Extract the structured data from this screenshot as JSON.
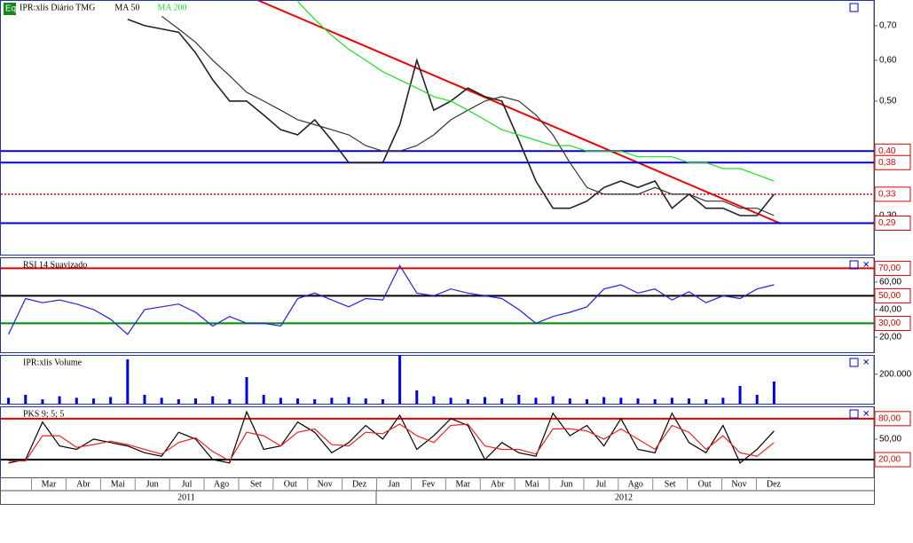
{
  "chart_data": [
    {
      "type": "line",
      "title": "IPR:xlis Diário TMG",
      "yscale": "log",
      "ylim": [
        0.252,
        0.785
      ],
      "yticks": [
        {
          "value": 0.7,
          "label": "0,70"
        },
        {
          "value": 0.6,
          "label": "0,60"
        },
        {
          "value": 0.5,
          "label": "0,50"
        },
        {
          "value": 0.3,
          "label": "0,30"
        }
      ],
      "levels": [
        {
          "value": 0.4,
          "label": "0,40",
          "color": "#0000cc"
        },
        {
          "value": 0.38,
          "label": "0,38",
          "color": "#0000cc"
        },
        {
          "value": 0.33,
          "label": "0,33",
          "color": "#dd0000"
        },
        {
          "value": 0.29,
          "label": "0,29",
          "color": "#0000cc"
        }
      ],
      "series": [
        {
          "color": "#222222",
          "values": [
            null,
            null,
            null,
            null,
            null,
            null,
            null,
            0.72,
            0.7,
            0.69,
            0.68,
            0.62,
            0.55,
            0.5,
            0.5,
            0.47,
            0.44,
            0.43,
            0.46,
            0.42,
            0.38,
            0.38,
            0.38,
            0.45,
            0.6,
            0.48,
            0.5,
            0.53,
            0.51,
            0.5,
            0.42,
            0.35,
            0.31,
            0.31,
            0.32,
            0.34,
            0.35,
            0.34,
            0.35,
            0.31,
            0.33,
            0.31,
            0.31,
            0.3,
            0.3,
            0.33
          ]
        },
        {
          "name": "MA 50",
          "color": "#333333",
          "values": [
            null,
            null,
            null,
            null,
            null,
            null,
            null,
            null,
            null,
            0.73,
            0.69,
            0.65,
            0.6,
            0.56,
            0.52,
            0.5,
            0.48,
            0.46,
            0.45,
            0.44,
            0.43,
            0.41,
            0.4,
            0.4,
            0.41,
            0.43,
            0.46,
            0.48,
            0.5,
            0.51,
            0.5,
            0.47,
            0.43,
            0.38,
            0.34,
            0.33,
            0.33,
            0.33,
            0.34,
            0.33,
            0.33,
            0.32,
            0.32,
            0.31,
            0.31,
            0.3
          ]
        },
        {
          "name": "MA 200",
          "color": "#22dd22",
          "values": [
            null,
            null,
            null,
            null,
            null,
            null,
            null,
            null,
            null,
            null,
            null,
            null,
            null,
            null,
            null,
            null,
            null,
            0.78,
            0.72,
            0.67,
            0.63,
            0.6,
            0.57,
            0.55,
            0.53,
            0.51,
            0.5,
            0.48,
            0.46,
            0.44,
            0.43,
            0.42,
            0.41,
            0.41,
            0.4,
            0.4,
            0.4,
            0.39,
            0.39,
            0.39,
            0.38,
            0.38,
            0.37,
            0.37,
            0.36,
            0.35
          ]
        }
      ]
    },
    {
      "type": "line",
      "title": "RSI 14 Suavizado",
      "ylim": [
        9,
        78
      ],
      "yticks": [
        {
          "value": 60,
          "label": "60,00"
        },
        {
          "value": 40,
          "label": "40,00"
        },
        {
          "value": 20,
          "label": "20,00"
        }
      ],
      "levels": [
        {
          "value": 70,
          "label": "70,00",
          "color": "#dd0000"
        },
        {
          "value": 50,
          "label": "50,00",
          "color": "#000000"
        },
        {
          "value": 30,
          "label": "30,00",
          "color": "#008800"
        }
      ],
      "series": [
        {
          "color": "#2222dd",
          "values": [
            22,
            48,
            45,
            47,
            44,
            40,
            33,
            22,
            40,
            42,
            44,
            38,
            28,
            35,
            30,
            30,
            28,
            48,
            52,
            47,
            42,
            48,
            47,
            72,
            52,
            50,
            55,
            52,
            50,
            48,
            40,
            30,
            35,
            38,
            42,
            55,
            58,
            52,
            55,
            47,
            53,
            45,
            50,
            48,
            55,
            58
          ]
        }
      ]
    },
    {
      "type": "bar",
      "title": "IPR:xlis Volume",
      "ylim": [
        0,
        330000
      ],
      "yticks": [
        {
          "value": 200000,
          "label": "200.000"
        }
      ],
      "levels": [],
      "series": [
        {
          "color": "#0000ee",
          "values": [
            40000,
            60000,
            30000,
            50000,
            40000,
            35000,
            45000,
            300000,
            60000,
            40000,
            30000,
            35000,
            50000,
            30000,
            180000,
            60000,
            40000,
            35000,
            30000,
            40000,
            45000,
            35000,
            30000,
            330000,
            90000,
            50000,
            40000,
            30000,
            45000,
            35000,
            60000,
            40000,
            50000,
            35000,
            30000,
            45000,
            40000,
            35000,
            30000,
            40000,
            35000,
            30000,
            40000,
            120000,
            60000,
            150000
          ]
        }
      ]
    },
    {
      "type": "line",
      "title": "PKS 9; 5; 5",
      "ylim": [
        -6,
        98
      ],
      "yticks": [
        {
          "value": 50,
          "label": "50,00"
        }
      ],
      "levels": [
        {
          "value": 80,
          "label": "80,00",
          "color": "#dd0000"
        },
        {
          "value": 20,
          "label": "20,00",
          "color": "#000000"
        }
      ],
      "series": [
        {
          "color": "#000000",
          "values": [
            15,
            20,
            75,
            40,
            35,
            50,
            45,
            40,
            30,
            25,
            60,
            50,
            20,
            15,
            90,
            35,
            40,
            75,
            60,
            30,
            45,
            70,
            50,
            85,
            35,
            55,
            80,
            70,
            20,
            45,
            30,
            25,
            88,
            55,
            70,
            40,
            80,
            35,
            30,
            88,
            45,
            30,
            70,
            15,
            35,
            62
          ]
        },
        {
          "color": "#ee2222",
          "values": [
            18,
            18,
            55,
            55,
            38,
            42,
            47,
            42,
            35,
            28,
            45,
            52,
            32,
            18,
            60,
            55,
            40,
            60,
            65,
            42,
            40,
            60,
            58,
            72,
            55,
            45,
            70,
            72,
            40,
            35,
            35,
            28,
            65,
            65,
            62,
            50,
            65,
            50,
            35,
            70,
            60,
            35,
            55,
            30,
            25,
            45
          ]
        }
      ]
    }
  ],
  "x_axis": {
    "months": [
      "Mar",
      "Abr",
      "Mai",
      "Jun",
      "Jul",
      "Ago",
      "Set",
      "Out",
      "Nov",
      "Dez",
      "Jan",
      "Fev",
      "Mar",
      "Abr",
      "Mai",
      "Jun",
      "Jul",
      "Ago",
      "Set",
      "Out",
      "Nov",
      "Dez"
    ],
    "years": [
      "2011",
      "2012"
    ]
  }
}
